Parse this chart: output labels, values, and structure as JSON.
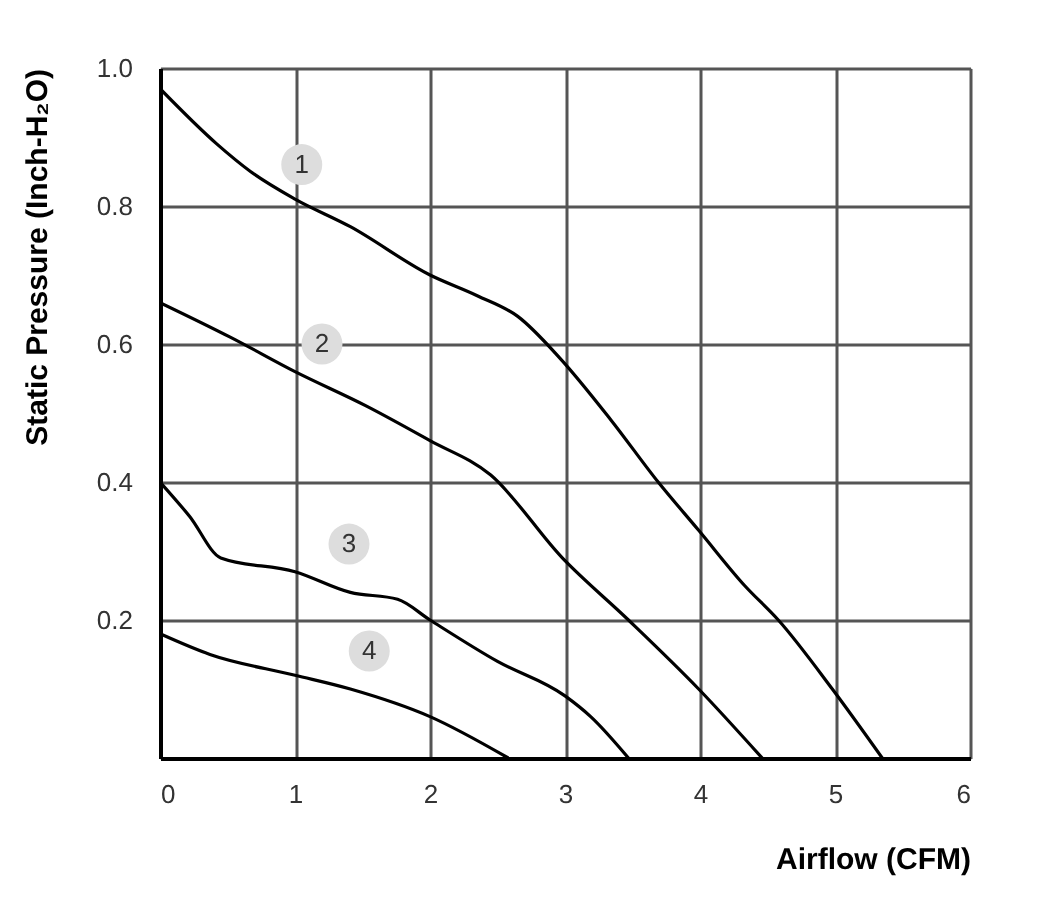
{
  "chart_data": {
    "type": "line",
    "xlabel": "Airflow (CFM)",
    "ylabel": "Static Pressure (Inch-H₂O)",
    "xlim": [
      0,
      6
    ],
    "ylim": [
      0,
      1
    ],
    "xticks": [
      0,
      1,
      2,
      3,
      4,
      5,
      6
    ],
    "yticks": [
      {
        "value": 0,
        "label": null
      },
      0.2,
      0.4,
      0.6,
      0.8,
      {
        "value": 1,
        "label": "1.0"
      }
    ],
    "grid": true,
    "legend": false,
    "marker": "none",
    "line_style": "solid",
    "series": [
      {
        "color": "#000000",
        "x": [
          0,
          0.42,
          0.67,
          1.0,
          1.41,
          2.0,
          2.35,
          2.65,
          2.96,
          3.34,
          3.69,
          3.99,
          4.33,
          4.58,
          4.98,
          5.35
        ],
        "values": [
          0.97,
          0.89,
          0.85,
          0.81,
          0.77,
          0.7,
          0.67,
          0.64,
          0.58,
          0.49,
          0.4,
          0.33,
          0.25,
          0.2,
          0.1,
          0
        ]
      },
      {
        "color": "#000000",
        "x": [
          0,
          0.52,
          1.0,
          1.53,
          2.0,
          2.45,
          2.98,
          3.47,
          3.99,
          4.46
        ],
        "values": [
          0.66,
          0.61,
          0.56,
          0.51,
          0.46,
          0.41,
          0.29,
          0.2,
          0.1,
          0
        ]
      },
      {
        "color": "#000000",
        "x": [
          0,
          0.22,
          0.45,
          1.0,
          1.41,
          1.76,
          2.0,
          2.5,
          3.0,
          3.19,
          3.47
        ],
        "values": [
          0.4,
          0.35,
          0.29,
          0.27,
          0.24,
          0.23,
          0.2,
          0.14,
          0.09,
          0.06,
          0
        ]
      },
      {
        "color": "#000000",
        "x": [
          0,
          0.37,
          1.0,
          1.41,
          2.0,
          2.58
        ],
        "values": [
          0.18,
          0.15,
          0.12,
          0.1,
          0.06,
          0
        ]
      }
    ],
    "annotations": [
      {
        "text": "1",
        "x": 1.05,
        "y": 0.86
      },
      {
        "text": "2",
        "x": 1.2,
        "y": 0.6
      },
      {
        "text": "3",
        "x": 1.4,
        "y": 0.31
      },
      {
        "text": "4",
        "x": 1.55,
        "y": 0.155
      }
    ]
  }
}
